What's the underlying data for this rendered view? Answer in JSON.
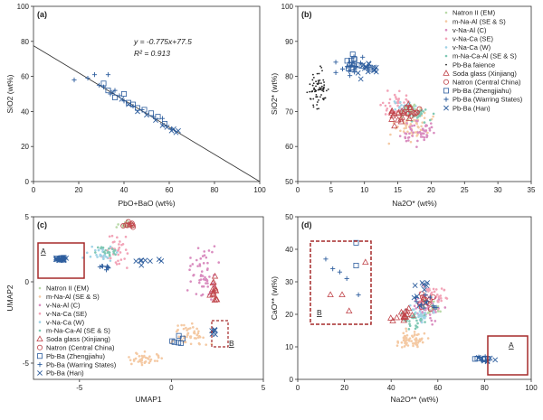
{
  "chart_data": [
    {
      "panel": "(a)",
      "type": "scatter",
      "xlabel": "PbO+BaO (wt%)",
      "ylabel": "SiO2 (wt%)",
      "xlim": [
        0,
        100
      ],
      "ylim": [
        0,
        100
      ],
      "xticks": [
        "0",
        "20",
        "40",
        "60",
        "80",
        "100"
      ],
      "yticks": [
        "0",
        "20",
        "40",
        "60",
        "80",
        "100"
      ],
      "equation": "y = -0.775x+77.5",
      "r2": "R² = 0.913",
      "fit": {
        "slope": -0.775,
        "intercept": 77.5
      },
      "series": [
        {
          "name": "Pb-Ba (Zhengjiahu)",
          "marker": "square",
          "color": "#2e5e9e",
          "x": [
            31,
            33,
            36,
            40,
            42,
            44,
            46,
            49,
            52,
            55,
            58
          ],
          "y": [
            56,
            52,
            48,
            50,
            45,
            44,
            42,
            41,
            39,
            37,
            33
          ]
        },
        {
          "name": "Pb-Ba (Warring States)",
          "marker": "plus",
          "color": "#2e5e9e",
          "x": [
            18,
            24,
            27,
            29,
            31,
            33,
            34,
            36,
            38,
            40,
            44,
            48,
            53,
            57,
            61
          ],
          "y": [
            58,
            59,
            61,
            55,
            54,
            61,
            50,
            52,
            49,
            46,
            43,
            41,
            37,
            36,
            30
          ]
        },
        {
          "name": "Pb-Ba (Han)",
          "marker": "x",
          "color": "#2e5e9e",
          "x": [
            35,
            39,
            42,
            46,
            50,
            54,
            57,
            59,
            61,
            62,
            63,
            64
          ],
          "y": [
            51,
            47,
            44,
            40,
            38,
            35,
            32,
            31,
            29,
            30,
            28,
            29
          ]
        }
      ]
    },
    {
      "panel": "(b)",
      "type": "scatter",
      "xlabel": "Na2O* (wt%)",
      "ylabel": "SiO2* (wt%)",
      "xlim": [
        0,
        35
      ],
      "ylim": [
        50,
        100
      ],
      "xticks": [
        "0",
        "5",
        "10",
        "15",
        "20",
        "25",
        "30",
        "35"
      ],
      "yticks": [
        "50",
        "60",
        "70",
        "80",
        "90",
        "100"
      ],
      "legend": [
        "Natron II (EM)",
        "m-Na-Al (SE & S)",
        "v-Na-Al (C)",
        "v-Na-Ca (SE)",
        "v-Na-Ca (W)",
        "m-Na-Ca-Al (SE & S)",
        "Pb-Ba faience",
        "Soda glass (Xinjiang)",
        "Natron (Central China)",
        "Pb-Ba (Zhengjiahu)",
        "Pb-Ba (Warring States)",
        "Pb-Ba (Han)"
      ]
    },
    {
      "panel": "(c)",
      "type": "scatter",
      "xlabel": "UMAP1",
      "ylabel": "UMAP2",
      "xlim": [
        -7.5,
        5
      ],
      "ylim": [
        -6,
        4
      ],
      "xticks": [
        "-5",
        "0",
        "5"
      ],
      "yticks": [
        "-5",
        "0",
        "5"
      ],
      "box_a": "A",
      "box_b": "B",
      "legend": [
        "Natron II (EM)",
        "m-Na-Al (SE & S)",
        "v-Na-Al (C)",
        "v-Na-Ca (SE)",
        "v-Na-Ca (W)",
        "m-Na-Ca-Al (SE & S)",
        "Soda glass (Xinjiang)",
        "Natron (Central China)",
        "Pb-Ba (Zhengjiahu)",
        "Pb-Ba (Warring States)",
        "Pb-Ba (Han)"
      ]
    },
    {
      "panel": "(d)",
      "type": "scatter",
      "xlabel": "Na2O** (wt%)",
      "ylabel": "CaO** (wt%)",
      "xlim": [
        0,
        100
      ],
      "ylim": [
        0,
        50
      ],
      "xticks": [
        "0",
        "20",
        "40",
        "60",
        "80",
        "100"
      ],
      "yticks": [
        "0",
        "10",
        "20",
        "30",
        "40",
        "50"
      ],
      "box_a": "A",
      "box_b": "B"
    }
  ],
  "series_colors": {
    "natron_em": "#b9d9a8",
    "m_na_al": "#f4c9a3",
    "v_na_al": "#d98cbf",
    "v_na_ca_se": "#f2a3b7",
    "v_na_ca_w": "#9fd3e6",
    "m_na_ca_al": "#7fc8b4",
    "faience": "#222222",
    "soda": "#c0444a",
    "natron_cc": "#c0444a",
    "pbba": "#2e5e9e",
    "box": "#a52a2a"
  }
}
